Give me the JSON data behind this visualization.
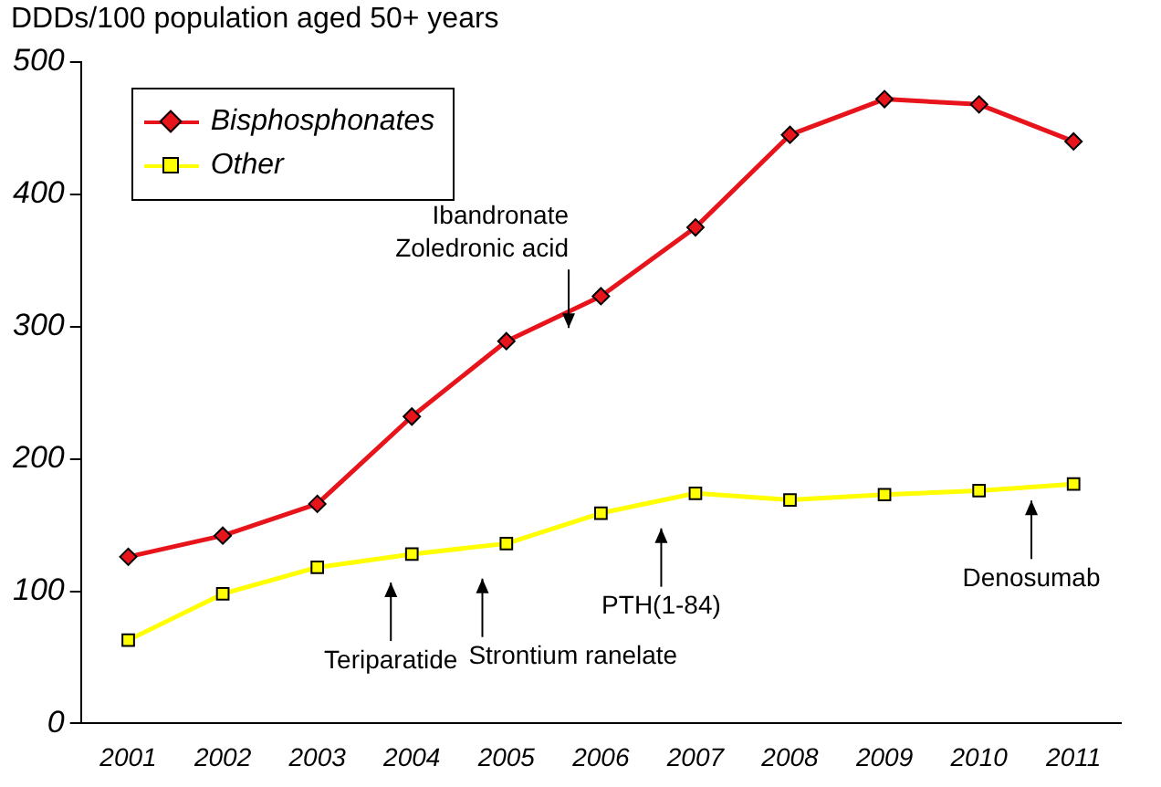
{
  "chart_data": {
    "type": "line",
    "ylabel": "DDDs/100 population aged 50+ years",
    "categories": [
      "2001",
      "2002",
      "2003",
      "2004",
      "2005",
      "2006",
      "2007",
      "2008",
      "2009",
      "2010",
      "2011"
    ],
    "ylim": [
      0,
      500
    ],
    "yticks": [
      0,
      100,
      200,
      300,
      400,
      500
    ],
    "series": [
      {
        "name": "Bisphosphonates",
        "color": "#e8141c",
        "marker": "diamond",
        "values": [
          126,
          142,
          166,
          232,
          289,
          323,
          375,
          445,
          472,
          468,
          440
        ]
      },
      {
        "name": "Other",
        "color": "#ffff00",
        "marker": "square",
        "values": [
          63,
          98,
          118,
          128,
          136,
          159,
          174,
          169,
          173,
          176,
          181
        ]
      }
    ],
    "annotations": [
      "Ibandronate\nZoledronic acid",
      "Teriparatide",
      "Strontium ranelate",
      "PTH(1-84)",
      "Denosumab"
    ],
    "grid": false,
    "legend": "top left",
    "line_style": "solid"
  }
}
